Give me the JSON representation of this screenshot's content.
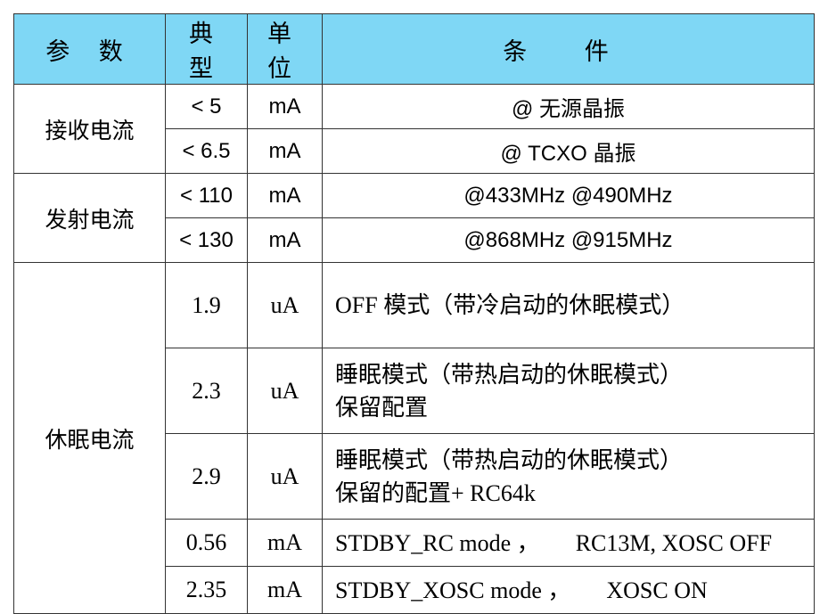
{
  "header": {
    "param": "参 数",
    "typical": "典 型",
    "unit": "单 位",
    "condition": "条 件"
  },
  "groups": {
    "rx": "接收电流",
    "tx": "发射电流",
    "sleep": "休眠电流"
  },
  "rows": [
    {
      "typical": "< 5",
      "unit": "mA",
      "condition": "@  无源晶振"
    },
    {
      "typical": "< 6.5",
      "unit": "mA",
      "condition": "@ TCXO 晶振"
    },
    {
      "typical": "< 110",
      "unit": "mA",
      "condition": "@433MHz @490MHz"
    },
    {
      "typical": "< 130",
      "unit": "mA",
      "condition": "@868MHz @915MHz"
    },
    {
      "typical": "1.9",
      "unit": "uA",
      "condition": "OFF 模式（带冷启动的休眠模式）"
    },
    {
      "typical": "2.3",
      "unit": "uA",
      "condition_line1": "睡眠模式（带热启动的休眠模式）",
      "condition_line2": "保留配置"
    },
    {
      "typical": "2.9",
      "unit": "uA",
      "condition_line1": "睡眠模式（带热启动的休眠模式）",
      "condition_line2": "保留的配置+ RC64k"
    },
    {
      "typical": "0.56",
      "unit": "mA",
      "condition_a": "STDBY_RC mode ，",
      "condition_b": "RC13M, XOSC OFF"
    },
    {
      "typical": "2.35",
      "unit": "mA",
      "condition_a": "STDBY_XOSC mode ，",
      "condition_b": "XOSC ON"
    }
  ]
}
